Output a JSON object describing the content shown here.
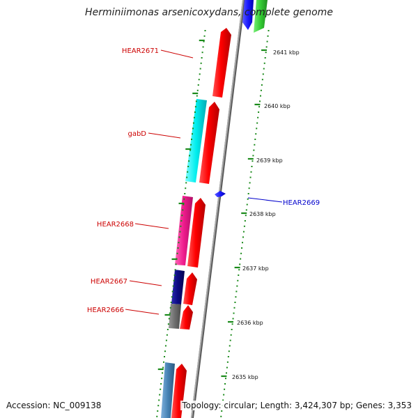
{
  "title": "Herminiimonas arsenicoxydans, complete genome",
  "footer": {
    "accession": "Accession: NC_009138",
    "summary": "Topology: circular; Length: 3,424,307 bp; Genes: 3,353"
  },
  "kbp_labels": [
    "2641 kbp",
    "2640 kbp",
    "2639 kbp",
    "2638 kbp",
    "2637 kbp",
    "2636 kbp",
    "2635 kbp"
  ],
  "gene_labels": [
    {
      "label": "HEAR2671",
      "color": "#cc0000"
    },
    {
      "label": "gabD",
      "color": "#cc0000"
    },
    {
      "label": "HEAR2668",
      "color": "#cc0000"
    },
    {
      "label": "HEAR2667",
      "color": "#cc0000"
    },
    {
      "label": "HEAR2666",
      "color": "#cc0000"
    },
    {
      "label": "HEAR2669",
      "color": "#0000cc"
    }
  ],
  "colors": {
    "backbone": "#8c8c8c",
    "ticks": "#1a8a1a",
    "forward_gene": "#ff0000",
    "top_blue": "#1a1aff",
    "top_green": "#33cc33",
    "gabD_feature": "#00e5ee",
    "hear2668_feature": "#ee1a8c",
    "hear2667_feature": "#0a0a80",
    "hear2666_feature": "#6e6e6e",
    "bottom_feature": "#4682b4",
    "hear2669_arrow": "#1a1aff"
  }
}
